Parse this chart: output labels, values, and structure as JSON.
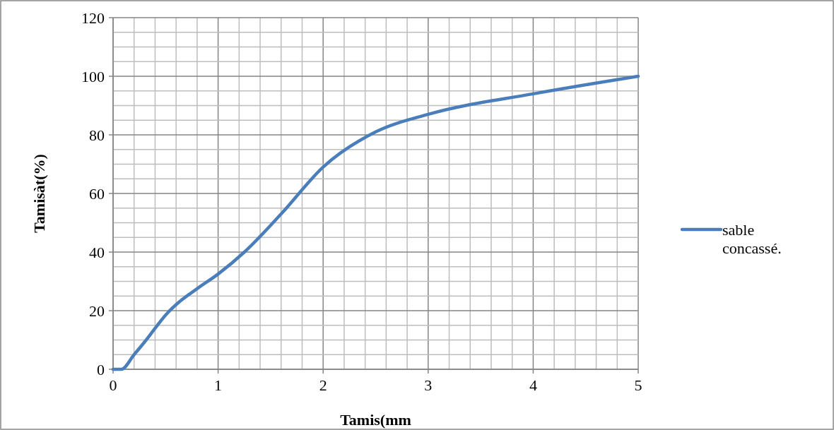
{
  "chart_data": {
    "type": "line",
    "xlabel": "Tamis(mm",
    "ylabel": "Tamisàt(%)",
    "xlim": [
      0,
      5
    ],
    "ylim": [
      0,
      120
    ],
    "xticks": [
      0,
      {
        "value": 0.2,
        "label": null
      },
      {
        "value": 0.4,
        "label": null
      },
      {
        "value": 0.6,
        "label": null
      },
      {
        "value": 0.8,
        "label": null
      },
      1,
      {
        "value": 1.2,
        "label": null
      },
      {
        "value": 1.4,
        "label": null
      },
      {
        "value": 1.6,
        "label": null
      },
      {
        "value": 1.8,
        "label": null
      },
      2,
      {
        "value": 2.2,
        "label": null
      },
      {
        "value": 2.4,
        "label": null
      },
      {
        "value": 2.6,
        "label": null
      },
      {
        "value": 2.8,
        "label": null
      },
      3,
      {
        "value": 3.2,
        "label": null
      },
      {
        "value": 3.4,
        "label": null
      },
      {
        "value": 3.6,
        "label": null
      },
      {
        "value": 3.8,
        "label": null
      },
      4,
      {
        "value": 4.2,
        "label": null
      },
      {
        "value": 4.4,
        "label": null
      },
      {
        "value": 4.6,
        "label": null
      },
      {
        "value": 4.8,
        "label": null
      },
      5
    ],
    "yticks": [
      0,
      {
        "value": 5,
        "label": null
      },
      {
        "value": 10,
        "label": null
      },
      {
        "value": 15,
        "label": null
      },
      20,
      {
        "value": 25,
        "label": null
      },
      {
        "value": 30,
        "label": null
      },
      {
        "value": 35,
        "label": null
      },
      40,
      {
        "value": 45,
        "label": null
      },
      {
        "value": 50,
        "label": null
      },
      {
        "value": 55,
        "label": null
      },
      60,
      {
        "value": 65,
        "label": null
      },
      {
        "value": 70,
        "label": null
      },
      {
        "value": 75,
        "label": null
      },
      80,
      {
        "value": 85,
        "label": null
      },
      {
        "value": 90,
        "label": null
      },
      {
        "value": 95,
        "label": null
      },
      100,
      {
        "value": 105,
        "label": null
      },
      {
        "value": 110,
        "label": null
      },
      {
        "value": 115,
        "label": null
      },
      120
    ],
    "grid": true,
    "legend": "right",
    "marker": "none",
    "line_style": "solid",
    "x": [
      0,
      0.08,
      0.2,
      0.315,
      0.4,
      0.5,
      0.63,
      0.8,
      1,
      1.25,
      1.6,
      2,
      2.5,
      3,
      4,
      5
    ],
    "series": [
      {
        "name": "sable concassé.",
        "color": "#4a7ebb",
        "values": [
          0,
          0,
          5,
          10,
          14,
          18.5,
          23,
          27.5,
          32.5,
          40,
          53,
          69,
          81,
          87,
          94,
          100
        ]
      }
    ]
  }
}
